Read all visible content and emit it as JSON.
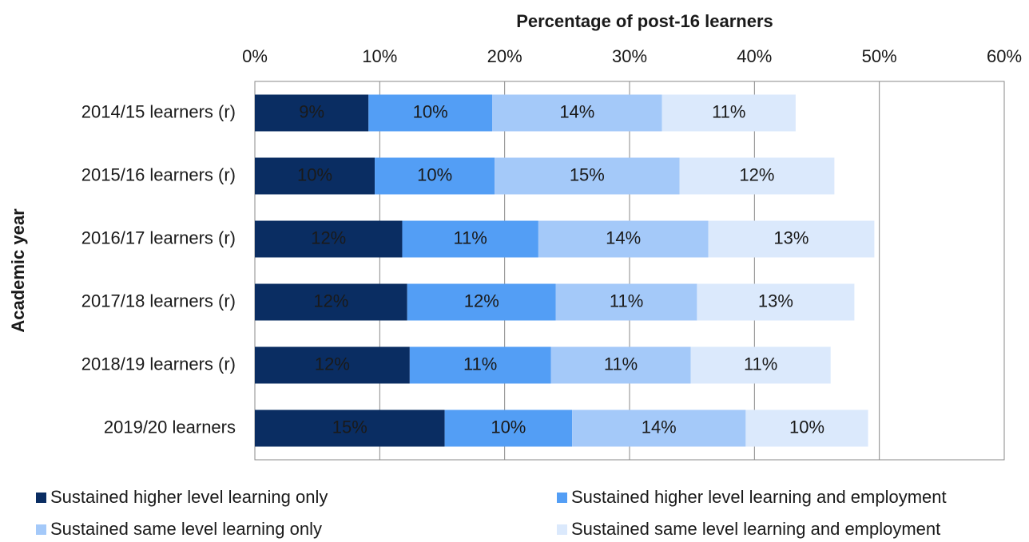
{
  "chart_data": {
    "type": "stacked-bar-horizontal",
    "x_label": "Percentage of post-16 learners",
    "y_label": "Academic year",
    "categories": [
      "2014/15 learners (r)",
      "2015/16 learners (r)",
      "2016/17 learners (r)",
      "2017/18 learners (r)",
      "2018/19 learners (r)",
      "2019/20 learners"
    ],
    "series": [
      {
        "name": "Sustained higher level learning only",
        "color": "#0a2d62",
        "label_color": "#ffffff",
        "values": [
          9.1,
          9.6,
          11.8,
          12.2,
          12.4,
          15.2
        ],
        "value_labels": [
          "9%",
          "10%",
          "12%",
          "12%",
          "12%",
          "15%"
        ]
      },
      {
        "name": "Sustained higher level learning and employment",
        "color": "#539ef5",
        "label_color": "#1a1a1a",
        "values": [
          9.9,
          9.6,
          10.9,
          11.9,
          11.3,
          10.2
        ],
        "value_labels": [
          "10%",
          "10%",
          "11%",
          "12%",
          "11%",
          "10%"
        ]
      },
      {
        "name": "Sustained same level learning only",
        "color": "#a4c9f9",
        "label_color": "#1a1a1a",
        "values": [
          13.6,
          14.8,
          13.6,
          11.3,
          11.2,
          13.9
        ],
        "value_labels": [
          "14%",
          "15%",
          "14%",
          "11%",
          "11%",
          "14%"
        ]
      },
      {
        "name": "Sustained same level learning and employment",
        "color": "#dbe9fc",
        "label_color": "#1a1a1a",
        "values": [
          10.7,
          12.4,
          13.3,
          12.6,
          11.2,
          9.8
        ],
        "value_labels": [
          "11%",
          "12%",
          "13%",
          "13%",
          "11%",
          "10%"
        ]
      }
    ],
    "xlim": [
      0,
      60
    ],
    "xticks": [
      {
        "value": 0,
        "label": "0%"
      },
      {
        "value": 10,
        "label": "10%"
      },
      {
        "value": 20,
        "label": "20%"
      },
      {
        "value": 30,
        "label": "30%"
      },
      {
        "value": 40,
        "label": "40%"
      },
      {
        "value": 50,
        "label": "50%"
      },
      {
        "value": 60,
        "label": "60%"
      }
    ],
    "grid": true,
    "legend": "bottom"
  }
}
